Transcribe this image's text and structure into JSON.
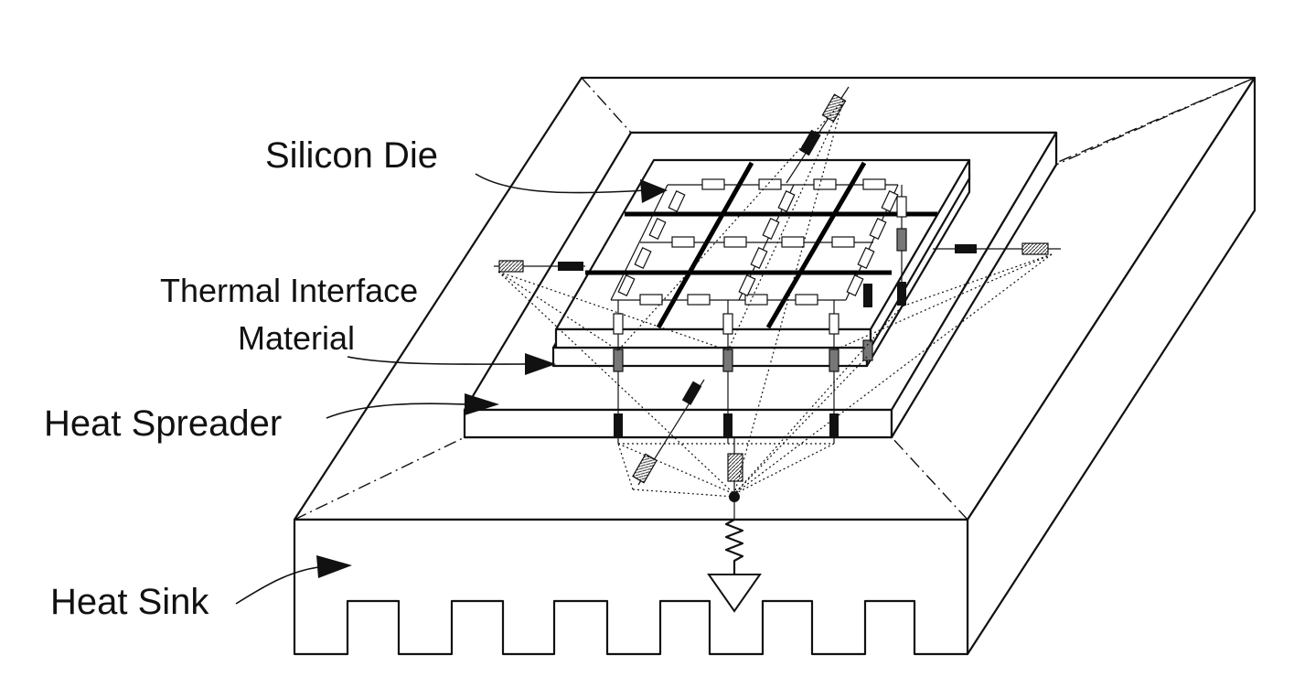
{
  "labels": {
    "silicon_die": "Silicon Die",
    "tim_line1": "Thermal Interface",
    "tim_line2": "Material",
    "heat_spreader": "Heat Spreader",
    "heat_sink": "Heat Sink"
  },
  "colors": {
    "stroke": "#111111",
    "background": "#ffffff",
    "resistor_dark": "#111111",
    "resistor_gray": "#777777",
    "resistor_hatched": "#999999"
  }
}
